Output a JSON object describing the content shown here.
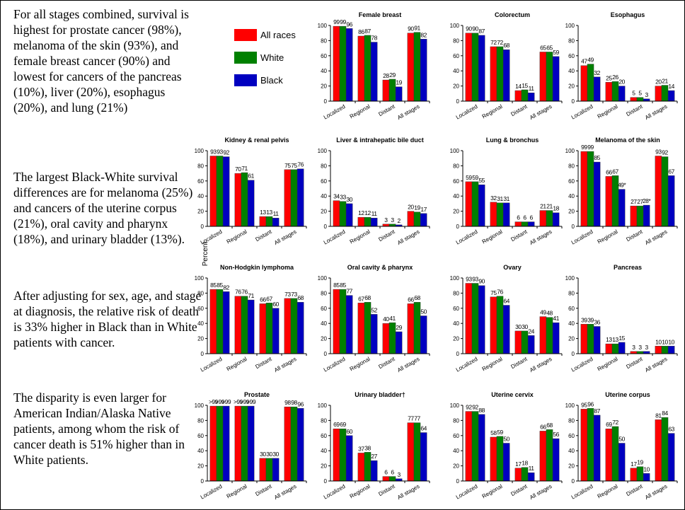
{
  "text": [
    "For all stages combined, survival is highest for prostate cancer (98%), melanoma of the skin (93%), and female breast cancer (90%) and lowest for cancers of the pancreas (10%), liver (20%), esophagus (20%), and lung (21%)",
    "The largest Black-White survival differences are for melanoma (25%) and cancers of the uterine corpus (21%), oral cavity and pharynx (18%), and urinary bladder (13%).",
    "After adjusting for sex, age, and stage at diagnosis, the relative risk of death is 33% higher in Black than in White patients with cancer.",
    "The disparity is even larger for American Indian/Alaska Native patients, among whom the risk of cancer death is 51% higher than in White patients."
  ],
  "legend": [
    {
      "name": "All races",
      "color": "#ff0000"
    },
    {
      "name": "White",
      "color": "#008000"
    },
    {
      "name": "Black",
      "color": "#0000c0"
    }
  ],
  "y_label": "Percent",
  "chart_data": [
    {
      "type": "bar",
      "title": "Female breast",
      "categories": [
        "Localized",
        "Regional",
        "Distant",
        "All stages"
      ],
      "ylim": [
        0,
        100
      ],
      "yticks": [
        0,
        20,
        40,
        60,
        80,
        100
      ],
      "series": [
        {
          "values": [
            99,
            86,
            28,
            90
          ]
        },
        {
          "values": [
            99,
            87,
            29,
            91
          ]
        },
        {
          "values": [
            96,
            78,
            19,
            82
          ]
        }
      ]
    },
    {
      "type": "bar",
      "title": "Colorectum",
      "categories": [
        "Localized",
        "Regional",
        "Distant",
        "All stages"
      ],
      "ylim": [
        0,
        100
      ],
      "yticks": [
        0,
        20,
        40,
        60,
        80,
        100
      ],
      "series": [
        {
          "values": [
            90,
            72,
            14,
            65
          ]
        },
        {
          "values": [
            90,
            72,
            15,
            65
          ]
        },
        {
          "values": [
            87,
            68,
            11,
            59
          ]
        }
      ]
    },
    {
      "type": "bar",
      "title": "Esophagus",
      "categories": [
        "Localized",
        "Regional",
        "Distant",
        "All stages"
      ],
      "ylim": [
        0,
        100
      ],
      "yticks": [
        0,
        20,
        40,
        60,
        80,
        100
      ],
      "series": [
        {
          "values": [
            47,
            25,
            5,
            20
          ]
        },
        {
          "values": [
            49,
            26,
            5,
            21
          ]
        },
        {
          "values": [
            32,
            20,
            3,
            14
          ]
        }
      ]
    },
    {
      "type": "bar",
      "title": "Kidney & renal pelvis",
      "categories": [
        "Localized",
        "Regional",
        "Distant",
        "All stages"
      ],
      "ylim": [
        0,
        100
      ],
      "yticks": [
        0,
        20,
        40,
        60,
        80,
        100
      ],
      "series": [
        {
          "values": [
            93,
            70,
            13,
            75
          ]
        },
        {
          "values": [
            93,
            71,
            13,
            75
          ]
        },
        {
          "values": [
            92,
            61,
            11,
            76
          ]
        }
      ]
    },
    {
      "type": "bar",
      "title": "Liver & intrahepatic bile duct",
      "categories": [
        "Localized",
        "Regional",
        "Distant",
        "All stages"
      ],
      "ylim": [
        0,
        100
      ],
      "yticks": [
        0,
        20,
        40,
        60,
        80,
        100
      ],
      "series": [
        {
          "values": [
            34,
            12,
            3,
            20
          ]
        },
        {
          "values": [
            33,
            12,
            3,
            19
          ]
        },
        {
          "values": [
            30,
            11,
            2,
            17
          ]
        }
      ]
    },
    {
      "type": "bar",
      "title": "Lung & bronchus",
      "categories": [
        "Localized",
        "Regional",
        "Distant",
        "All stages"
      ],
      "ylim": [
        0,
        100
      ],
      "yticks": [
        0,
        20,
        40,
        60,
        80,
        100
      ],
      "series": [
        {
          "values": [
            59,
            32,
            6,
            21
          ]
        },
        {
          "values": [
            59,
            31,
            6,
            21
          ]
        },
        {
          "values": [
            55,
            31,
            6,
            18
          ]
        }
      ]
    },
    {
      "type": "bar",
      "title": "Melanoma of the skin",
      "categories": [
        "Localized",
        "Regional",
        "Distant",
        "All stages"
      ],
      "ylim": [
        0,
        100
      ],
      "yticks": [
        0,
        20,
        40,
        60,
        80,
        100
      ],
      "series": [
        {
          "values": [
            99,
            66,
            27,
            93
          ]
        },
        {
          "values": [
            99,
            67,
            27,
            92
          ]
        },
        {
          "values": [
            85,
            49,
            28,
            67
          ],
          "value_labels": [
            "85",
            "49*",
            "28*",
            "67"
          ]
        }
      ]
    },
    {
      "type": "bar",
      "title": "Non-Hodgkin lymphoma",
      "categories": [
        "Localized",
        "Regional",
        "Distant",
        "All stages"
      ],
      "ylim": [
        0,
        100
      ],
      "yticks": [
        0,
        20,
        40,
        60,
        80,
        100
      ],
      "series": [
        {
          "values": [
            85,
            76,
            66,
            73
          ]
        },
        {
          "values": [
            85,
            76,
            67,
            73
          ]
        },
        {
          "values": [
            82,
            71,
            60,
            68
          ]
        }
      ]
    },
    {
      "type": "bar",
      "title": "Oral cavity & pharynx",
      "categories": [
        "Localized",
        "Regional",
        "Distant",
        "All stages"
      ],
      "ylim": [
        0,
        100
      ],
      "yticks": [
        0,
        20,
        40,
        60,
        80,
        100
      ],
      "series": [
        {
          "values": [
            85,
            67,
            40,
            66
          ]
        },
        {
          "values": [
            85,
            68,
            41,
            68
          ]
        },
        {
          "values": [
            77,
            52,
            29,
            50
          ]
        }
      ]
    },
    {
      "type": "bar",
      "title": "Ovary",
      "categories": [
        "Localized",
        "Regional",
        "Distant",
        "All stages"
      ],
      "ylim": [
        0,
        100
      ],
      "yticks": [
        0,
        20,
        40,
        60,
        80,
        100
      ],
      "series": [
        {
          "values": [
            93,
            75,
            30,
            49
          ]
        },
        {
          "values": [
            93,
            76,
            30,
            48
          ]
        },
        {
          "values": [
            90,
            64,
            24,
            41
          ]
        }
      ]
    },
    {
      "type": "bar",
      "title": "Pancreas",
      "categories": [
        "Localized",
        "Regional",
        "Distant",
        "All stages"
      ],
      "ylim": [
        0,
        100
      ],
      "yticks": [
        0,
        20,
        40,
        60,
        80,
        100
      ],
      "series": [
        {
          "values": [
            39,
            13,
            3,
            10
          ]
        },
        {
          "values": [
            39,
            13,
            3,
            10
          ]
        },
        {
          "values": [
            36,
            15,
            3,
            10
          ]
        }
      ]
    },
    {
      "type": "bar",
      "title": "Prostate",
      "categories": [
        "Localized",
        "Regional",
        "Distant",
        "All stages"
      ],
      "ylim": [
        0,
        100
      ],
      "yticks": [
        0,
        20,
        40,
        60,
        80,
        100
      ],
      "series": [
        {
          "values": [
            99,
            99,
            30,
            98
          ],
          "value_labels": [
            ">99",
            ">99",
            "30",
            "98"
          ]
        },
        {
          "values": [
            99,
            99,
            30,
            98
          ],
          "value_labels": [
            ">99",
            ">99",
            "30",
            "98"
          ]
        },
        {
          "values": [
            99,
            99,
            30,
            96
          ],
          "value_labels": [
            ">99",
            ">99",
            "30",
            "96"
          ]
        }
      ]
    },
    {
      "type": "bar",
      "title": "Urinary bladder†",
      "categories": [
        "Localized",
        "Regional",
        "Distant",
        "All stages"
      ],
      "ylim": [
        0,
        100
      ],
      "yticks": [
        0,
        20,
        40,
        60,
        80,
        100
      ],
      "series": [
        {
          "values": [
            69,
            37,
            6,
            77
          ]
        },
        {
          "values": [
            69,
            38,
            6,
            77
          ]
        },
        {
          "values": [
            60,
            27,
            3,
            64
          ]
        }
      ]
    },
    {
      "type": "bar",
      "title": "Uterine cervix",
      "categories": [
        "Localized",
        "Regional",
        "Distant",
        "All stages"
      ],
      "ylim": [
        0,
        100
      ],
      "yticks": [
        0,
        20,
        40,
        60,
        80,
        100
      ],
      "series": [
        {
          "values": [
            92,
            58,
            17,
            66
          ]
        },
        {
          "values": [
            92,
            59,
            18,
            68
          ]
        },
        {
          "values": [
            88,
            50,
            11,
            56
          ]
        }
      ]
    },
    {
      "type": "bar",
      "title": "Uterine corpus",
      "categories": [
        "Localized",
        "Regional",
        "Distant",
        "All stages"
      ],
      "ylim": [
        0,
        100
      ],
      "yticks": [
        0,
        20,
        40,
        60,
        80,
        100
      ],
      "series": [
        {
          "values": [
            95,
            69,
            17,
            81
          ]
        },
        {
          "values": [
            96,
            72,
            19,
            84
          ]
        },
        {
          "values": [
            87,
            50,
            10,
            63
          ]
        }
      ]
    }
  ]
}
